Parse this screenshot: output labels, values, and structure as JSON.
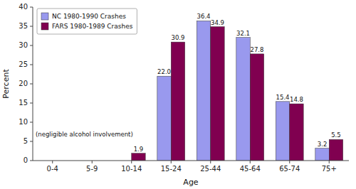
{
  "chart_data": {
    "type": "bar",
    "categories": [
      "0-4",
      "5-9",
      "10-14",
      "15-24",
      "25-44",
      "45-64",
      "65-74",
      "75+"
    ],
    "series": [
      {
        "name": "NC 1980-1990 Crashes",
        "color": "#9999ee",
        "values": [
          0,
          0,
          0,
          22.0,
          36.4,
          32.1,
          15.4,
          3.2
        ],
        "value_labels": [
          null,
          null,
          null,
          "22.0",
          "36.4",
          "32.1",
          "15.4",
          "3.2"
        ]
      },
      {
        "name": "FARS 1980-1989 Crashes",
        "color": "#800050",
        "values": [
          0,
          0,
          1.9,
          30.9,
          34.9,
          27.8,
          14.8,
          5.5
        ],
        "value_labels": [
          null,
          null,
          "1.9",
          "30.9",
          "34.9",
          "27.8",
          "14.8",
          "5.5"
        ]
      }
    ],
    "xlabel": "Age",
    "ylabel": "Percent",
    "ylim": [
      0,
      40
    ],
    "yticks": [
      0,
      5,
      10,
      15,
      20,
      25,
      30,
      35,
      40
    ],
    "annotation": "(negligible alcohol involvement)",
    "data_labels": true,
    "legend": "upper-left",
    "grid": false
  }
}
